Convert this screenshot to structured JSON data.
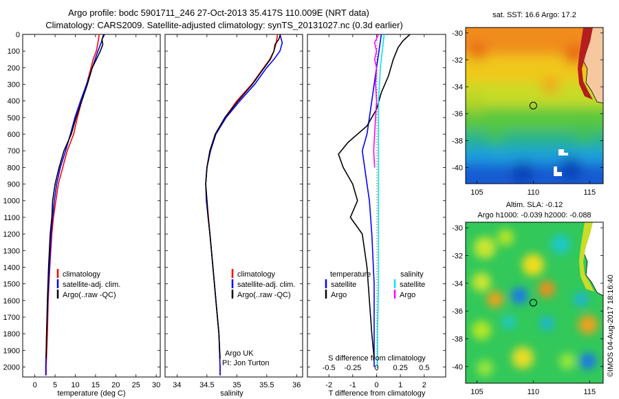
{
  "header": {
    "line1": "Argo profile: bodc 5901711_246 27-Oct-2013 35.417S 110.009E (NRT data)",
    "line2": "Climatology: CARS2009. Satellite-adjusted climatology: synTS_20131027.nc (0.3d earlier)"
  },
  "chart_data": [
    {
      "type": "line",
      "panel": "temperature",
      "xlabel": "temperature (deg C)",
      "ylabel": "",
      "xlim": [
        -3,
        31
      ],
      "ylim": [
        2060,
        0
      ],
      "xticks": [
        0,
        5,
        10,
        15,
        20,
        25,
        30
      ],
      "yticks": [
        0,
        100,
        200,
        300,
        400,
        500,
        600,
        700,
        800,
        900,
        1000,
        1100,
        1200,
        1300,
        1400,
        1500,
        1600,
        1700,
        1800,
        1900,
        2000
      ],
      "legend": [
        "climatology",
        "satellite-adj. clim.",
        "Argo(..raw -QC)"
      ],
      "series": [
        {
          "name": "climatology",
          "color": "#ff0000",
          "y": [
            0,
            50,
            100,
            150,
            200,
            300,
            400,
            500,
            600,
            700,
            800,
            900,
            1000,
            1100,
            1200,
            1400,
            1600,
            1800,
            2000,
            2050
          ],
          "x": [
            15.9,
            15.6,
            15.2,
            14.4,
            13.9,
            12.8,
            11.6,
            10.5,
            9.6,
            8.0,
            6.9,
            5.8,
            5.2,
            4.6,
            4.2,
            3.7,
            3.3,
            3.1,
            2.8,
            2.8
          ]
        },
        {
          "name": "satellite-adj. clim.",
          "color": "#0000ff",
          "y": [
            0,
            50,
            100,
            150,
            200,
            300,
            400,
            500,
            600,
            700,
            800,
            900,
            1000,
            1100,
            1200,
            1400,
            1600,
            1800,
            2000,
            2050
          ],
          "x": [
            17.0,
            16.4,
            15.6,
            14.9,
            14.2,
            12.8,
            11.3,
            9.9,
            8.8,
            7.6,
            6.3,
            5.4,
            4.8,
            4.4,
            4.0,
            3.6,
            3.2,
            2.9,
            2.7,
            2.7
          ]
        },
        {
          "name": "Argo(..raw -QC)",
          "color": "#000000",
          "y": [
            0,
            30,
            60,
            100,
            150,
            200,
            300,
            400,
            500,
            600,
            700,
            800,
            900,
            1000,
            1100,
            1200,
            1400,
            1600,
            1800,
            1950
          ],
          "x": [
            17.2,
            16.6,
            16.8,
            16.2,
            15.2,
            14.2,
            13.0,
            11.6,
            10.2,
            9.0,
            7.2,
            6.0,
            5.0,
            4.4,
            4.2,
            3.8,
            3.4,
            3.1,
            2.9,
            2.8
          ]
        }
      ]
    },
    {
      "type": "line",
      "panel": "salinity",
      "xlabel": "salinity",
      "ylabel": "",
      "xlim": [
        33.8,
        36.1
      ],
      "ylim": [
        2060,
        0
      ],
      "xticks": [
        34,
        34.5,
        35,
        35.5,
        36
      ],
      "legend": [
        "climatology",
        "satellite-adj. clim.",
        "Argo(..raw -QC)"
      ],
      "annotation": [
        "Argo UK",
        "PI: Jon Turton"
      ],
      "series": [
        {
          "name": "climatology",
          "color": "#ff0000",
          "y": [
            0,
            50,
            100,
            150,
            200,
            300,
            400,
            500,
            600,
            700,
            800,
            900,
            1000,
            1200,
            1400,
            1600,
            1800,
            2000,
            2050
          ],
          "x": [
            35.68,
            35.66,
            35.62,
            35.55,
            35.45,
            35.25,
            35.0,
            34.8,
            34.64,
            34.55,
            34.5,
            34.48,
            34.5,
            34.55,
            34.6,
            34.65,
            34.7,
            34.72,
            34.72
          ]
        },
        {
          "name": "satellite-adj. clim.",
          "color": "#0000ff",
          "y": [
            0,
            50,
            100,
            150,
            200,
            300,
            400,
            500,
            600,
            700,
            800,
            900,
            1000,
            1200,
            1400,
            1600,
            1800,
            2000,
            2050
          ],
          "x": [
            35.72,
            35.76,
            35.72,
            35.62,
            35.5,
            35.3,
            35.05,
            34.82,
            34.65,
            34.56,
            34.5,
            34.48,
            34.49,
            34.55,
            34.6,
            34.65,
            34.7,
            34.72,
            34.72
          ]
        },
        {
          "name": "Argo(..raw -QC)",
          "color": "#000000",
          "y": [
            0,
            30,
            60,
            100,
            150,
            200,
            300,
            400,
            500,
            600,
            700,
            800,
            900,
            1000,
            1100,
            1200,
            1400,
            1600,
            1800,
            1950
          ],
          "x": [
            35.73,
            35.7,
            35.64,
            35.62,
            35.56,
            35.46,
            35.26,
            35.02,
            34.8,
            34.64,
            34.55,
            34.5,
            34.48,
            34.5,
            34.52,
            34.55,
            34.6,
            34.65,
            34.7,
            34.72
          ]
        }
      ]
    },
    {
      "type": "line",
      "panel": "difference",
      "xlabel": "T difference from climatology",
      "secondary_xlabel": "S difference from climatology",
      "xlim": [
        -2.9,
        2.9
      ],
      "ylim": [
        2060,
        0
      ],
      "xticks": [
        -2,
        -1,
        0,
        1,
        2
      ],
      "secondary_xticks": [
        -0.5,
        -0.25,
        0,
        0.25,
        0.5
      ],
      "legend_temperature": {
        "title": "temperature",
        "items": [
          "satellite",
          "Argo"
        ]
      },
      "legend_salinity": {
        "title": "salinity",
        "items": [
          "satellite",
          "Argo"
        ]
      },
      "series": [
        {
          "name": "satellite",
          "group": "temperature",
          "color": "#0000ff",
          "y": [
            0,
            100,
            200,
            300,
            400,
            500,
            600,
            700,
            800,
            900,
            1000,
            1200,
            1500,
            1800,
            2000
          ],
          "x": [
            0.2,
            0.1,
            0.0,
            -0.1,
            -0.2,
            -0.3,
            -0.4,
            -0.6,
            -0.5,
            -0.4,
            -0.3,
            -0.2,
            -0.1,
            -0.1,
            -0.1
          ]
        },
        {
          "name": "Argo",
          "group": "temperature",
          "color": "#000000",
          "y": [
            0,
            40,
            80,
            150,
            250,
            350,
            450,
            550,
            650,
            720,
            800,
            900,
            1000,
            1100,
            1200,
            1400,
            1600,
            1800,
            1950
          ],
          "x": [
            1.4,
            1.1,
            0.9,
            0.7,
            0.5,
            0.2,
            0.0,
            -0.4,
            -1.2,
            -1.6,
            -1.4,
            -1.0,
            -0.8,
            -1.1,
            -0.6,
            -0.4,
            -0.3,
            -0.2,
            -0.1
          ]
        },
        {
          "name": "satellite",
          "group": "salinity",
          "color": "#00e5e5",
          "y": [
            0,
            100,
            200,
            300,
            400,
            500,
            600,
            700,
            800,
            900,
            1000,
            1200,
            1500,
            1800,
            2000
          ],
          "x": [
            0.08,
            0.06,
            0.04,
            0.03,
            0.02,
            0.02,
            0.02,
            0.02,
            0.02,
            0.02,
            0.02,
            0.02,
            0.02,
            0.01,
            0.01
          ]
        },
        {
          "name": "Argo",
          "group": "salinity",
          "color": "#ff00ff",
          "y": [
            0,
            50,
            100,
            150,
            200,
            300,
            400,
            500,
            600,
            700,
            800
          ],
          "x": [
            0.02,
            -0.02,
            0.0,
            -0.02,
            0.0,
            -0.01,
            0.0,
            -0.01,
            -0.02,
            -0.03,
            -0.02
          ]
        }
      ]
    },
    {
      "type": "heatmap",
      "panel": "satellite SST map",
      "title": "sat. SST: 16.6 Argo: 17.2",
      "xlim": [
        104,
        116.2
      ],
      "ylim": [
        -41.2,
        -29.6
      ],
      "xticks": [
        105,
        110,
        115
      ],
      "yticks": [
        -30,
        -32,
        -34,
        -36,
        -38,
        -40
      ],
      "marker": [
        110.0,
        -35.4
      ]
    },
    {
      "type": "heatmap",
      "panel": "altimetry SLA map",
      "title": "Altim. SLA: -0.12",
      "subtitle": "Argo h1000: -0.039 h2000: -0.088",
      "xlim": [
        104,
        116.2
      ],
      "ylim": [
        -41.2,
        -29.6
      ],
      "xticks": [
        105,
        110,
        115
      ],
      "yticks": [
        -30,
        -32,
        -34,
        -36,
        -38,
        -40
      ],
      "marker": [
        110.0,
        -35.4
      ]
    }
  ],
  "watermark": "©IMOS 04-Aug-2017 18:16:40"
}
